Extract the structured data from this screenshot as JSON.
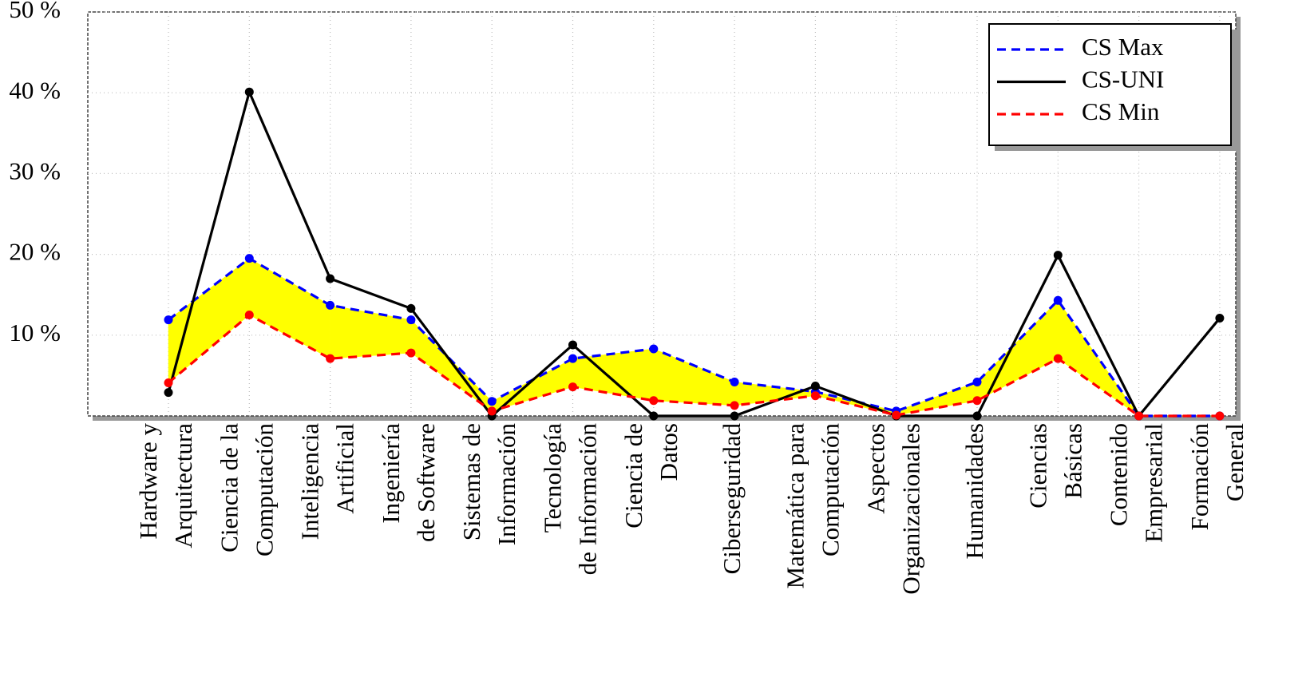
{
  "chart_data": {
    "type": "line",
    "categories": [
      "Hardware y\nArquitectura",
      "Ciencia de la\nComputación",
      "Inteligencia\nArtificial",
      "Ingeniería\nde Software",
      "Sistemas de\nInformación",
      "Tecnología\nde Información",
      "Ciencia de\nDatos",
      "Ciberseguridad",
      "Matemática para\nComputación",
      "Aspectos\nOrganizacionales",
      "Humanidades",
      "Ciencias\nBásicas",
      "Contenido\nEmpresarial",
      "Formación\nGeneral"
    ],
    "series": [
      {
        "name": "CS Max",
        "color": "#0000ff",
        "dashed": true,
        "values": [
          11.9,
          19.5,
          13.7,
          11.9,
          1.8,
          7.1,
          8.3,
          4.2,
          3.0,
          0.6,
          4.2,
          14.3,
          0,
          0
        ]
      },
      {
        "name": "CS-UNI",
        "color": "#000000",
        "dashed": false,
        "values": [
          2.9,
          40.1,
          17.0,
          13.3,
          0,
          8.8,
          0,
          0,
          3.7,
          0,
          0,
          19.9,
          0,
          12.1
        ]
      },
      {
        "name": "CS Min",
        "color": "#ff0000",
        "dashed": true,
        "values": [
          4.1,
          12.5,
          7.1,
          7.8,
          0.6,
          3.6,
          1.9,
          1.3,
          2.5,
          0.1,
          1.9,
          7.1,
          0,
          0
        ]
      }
    ],
    "band_color": "#ffff00",
    "ylim": [
      0,
      50
    ],
    "yticks": [
      {
        "value": 10,
        "label": "10 %"
      },
      {
        "value": 20,
        "label": "20 %"
      },
      {
        "value": 30,
        "label": "30 %"
      },
      {
        "value": 40,
        "label": "40 %"
      },
      {
        "value": 50,
        "label": "50 %"
      }
    ],
    "grid": true,
    "legend": "top-right"
  }
}
